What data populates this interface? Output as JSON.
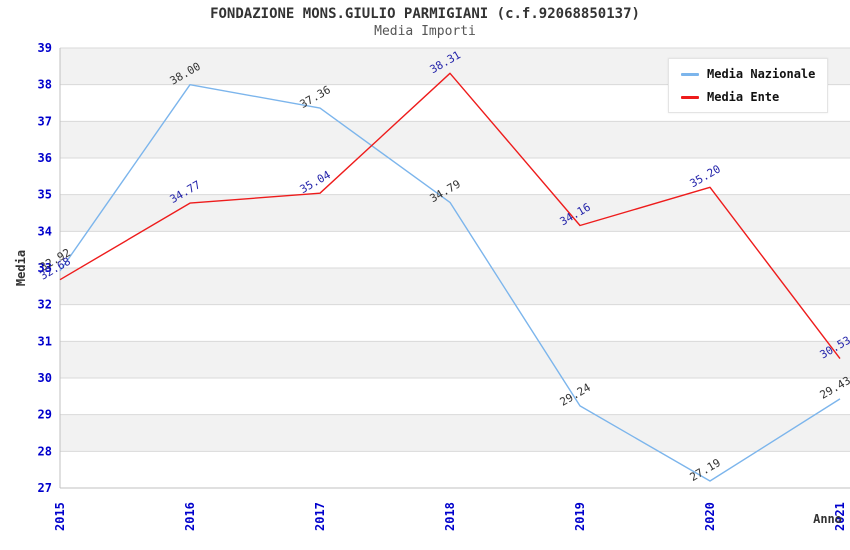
{
  "title": "FONDAZIONE MONS.GIULIO PARMIGIANI (c.f.92068850137)",
  "subtitle": "Media Importi",
  "chart_data": {
    "type": "line",
    "x": [
      2015,
      2016,
      2017,
      2018,
      2019,
      2020,
      2021
    ],
    "series": [
      {
        "name": "Media Nazionale",
        "color": "#7cb5ec",
        "label_color": "#333333",
        "values": [
          32.92,
          38.0,
          37.36,
          34.79,
          29.24,
          27.19,
          29.43
        ]
      },
      {
        "name": "Media Ente",
        "color": "#ee1c1c",
        "label_color": "#2424aa",
        "values": [
          32.68,
          34.77,
          35.04,
          38.31,
          34.16,
          35.2,
          30.53
        ]
      }
    ],
    "xlabel": "Anno",
    "ylabel": "Media",
    "ylim": [
      27,
      39
    ],
    "ytick_step": 1,
    "grid": true,
    "legend_position": "top-right",
    "colors": {
      "tick_label": "#0000cc",
      "band_fill": "#f2f2f2",
      "gridline": "#d9d9d9",
      "axis_line": "#c0c0c0",
      "axis_title": "#333333"
    }
  }
}
